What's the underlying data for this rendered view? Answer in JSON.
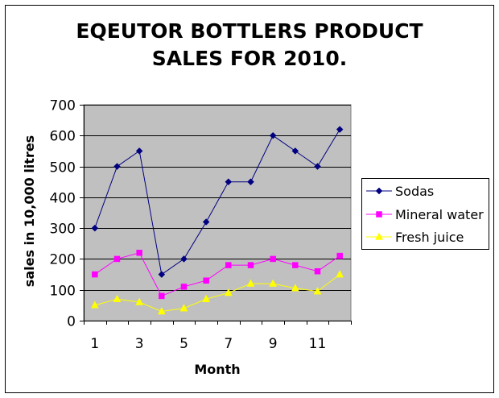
{
  "chart_data": {
    "type": "line",
    "title_lines": [
      "EQEUTOR BOTTLERS PRODUCT",
      "SALES  FOR 2010."
    ],
    "xlabel": "Month",
    "ylabel": "sales in 10,000 litres",
    "x": [
      1,
      2,
      3,
      4,
      5,
      6,
      7,
      8,
      9,
      10,
      11,
      12
    ],
    "x_tick_labels": [
      "1",
      "3",
      "5",
      "7",
      "9",
      "11"
    ],
    "ylim": [
      0,
      700
    ],
    "y_ticks": [
      0,
      100,
      200,
      300,
      400,
      500,
      600,
      700
    ],
    "grid": "horizontal major gridlines",
    "plot_background": "#C0C0C0",
    "legend_position": "right",
    "series": [
      {
        "name": "Sodas",
        "color": "#000080",
        "marker": "diamond",
        "values": [
          300,
          500,
          550,
          150,
          200,
          320,
          450,
          450,
          600,
          550,
          500,
          620
        ]
      },
      {
        "name": "Mineral water",
        "color": "#FF00FF",
        "marker": "square",
        "values": [
          150,
          200,
          220,
          80,
          110,
          130,
          180,
          180,
          200,
          180,
          160,
          210
        ]
      },
      {
        "name": "Fresh juice",
        "color": "#FFFF00",
        "marker": "triangle",
        "values": [
          50,
          70,
          60,
          30,
          40,
          70,
          90,
          120,
          120,
          105,
          95,
          150
        ]
      }
    ]
  }
}
